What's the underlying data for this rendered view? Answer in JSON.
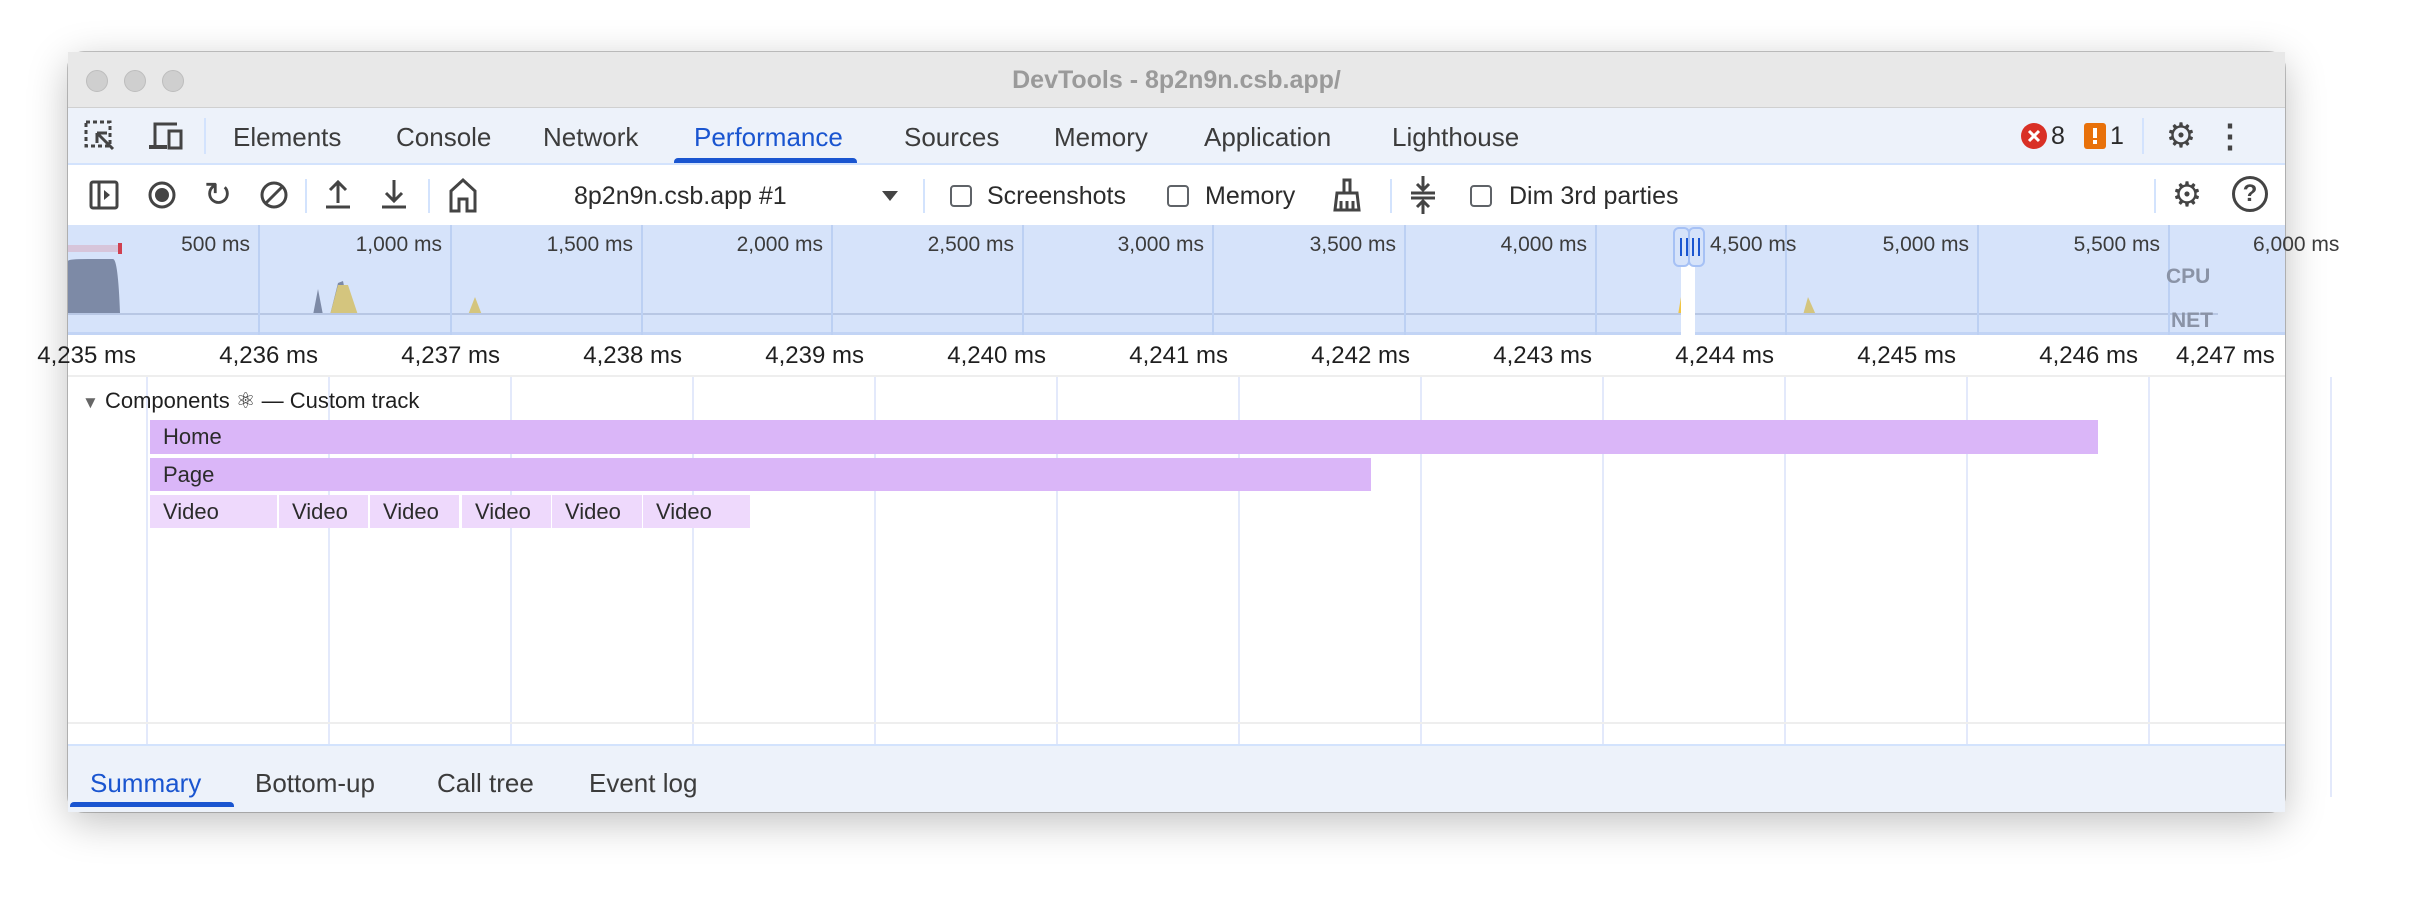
{
  "window": {
    "title": "DevTools - 8p2n9n.csb.app/"
  },
  "tabs": [
    {
      "label": "Elements"
    },
    {
      "label": "Console"
    },
    {
      "label": "Network"
    },
    {
      "label": "Performance",
      "active": true
    },
    {
      "label": "Sources"
    },
    {
      "label": "Memory"
    },
    {
      "label": "Application"
    },
    {
      "label": "Lighthouse"
    }
  ],
  "status": {
    "errors": "8",
    "warnings": "1",
    "error_color": "#d93025",
    "warning_color": "#e8710a"
  },
  "toolbar": {
    "recording_select": "8p2n9n.csb.app #1",
    "screenshots_label": "Screenshots",
    "screenshots_checked": false,
    "memory_label": "Memory",
    "memory_checked": false,
    "dim_label": "Dim 3rd parties",
    "dim_checked": false
  },
  "overview": {
    "ticks": [
      "500 ms",
      "1,000 ms",
      "1,500 ms",
      "2,000 ms",
      "2,500 ms",
      "3,000 ms",
      "3,500 ms",
      "4,000 ms",
      "4,500 ms",
      "5,000 ms",
      "5,500 ms",
      "6,000 ms"
    ],
    "cpu_label": "CPU",
    "net_label": "NET"
  },
  "ruler": {
    "ticks": [
      "4,235 ms",
      "4,236 ms",
      "4,237 ms",
      "4,238 ms",
      "4,239 ms",
      "4,240 ms",
      "4,241 ms",
      "4,242 ms",
      "4,243 ms",
      "4,244 ms",
      "4,245 ms",
      "4,246 ms",
      "4,247 ms"
    ]
  },
  "track": {
    "title": "Components ⚛ — Custom track",
    "rows": [
      {
        "label": "Home"
      },
      {
        "label": "Page"
      }
    ],
    "videos": [
      "Video",
      "Video",
      "Video",
      "Video",
      "Video",
      "Video"
    ],
    "accent": "#dab6f8",
    "light": "#eed9fc"
  },
  "bottom_tabs": [
    {
      "label": "Summary",
      "active": true
    },
    {
      "label": "Bottom-up"
    },
    {
      "label": "Call tree"
    },
    {
      "label": "Event log"
    }
  ]
}
